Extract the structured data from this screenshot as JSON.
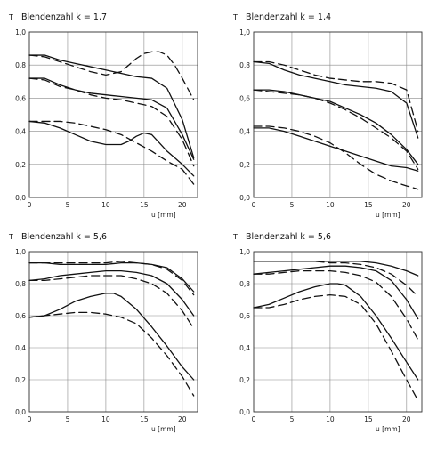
{
  "chart_data": [
    {
      "type": "line",
      "title": "Blendenzahl k = 1,7",
      "ylabel": "T",
      "xlabel": "u [mm]",
      "xlim": [
        0,
        22
      ],
      "ylim": [
        0,
        1.0
      ],
      "xticks": [
        0,
        5,
        10,
        15,
        20
      ],
      "yticks": [
        "0,0",
        "0,2",
        "0,4",
        "0,6",
        "0,8",
        "1,0"
      ],
      "series": [
        {
          "style": "solid",
          "x": [
            0,
            2,
            4,
            6,
            8,
            10,
            12,
            14,
            16,
            18,
            20,
            21.5
          ],
          "y": [
            0.86,
            0.86,
            0.83,
            0.81,
            0.79,
            0.77,
            0.75,
            0.73,
            0.72,
            0.66,
            0.47,
            0.24
          ]
        },
        {
          "style": "dashed",
          "x": [
            0,
            2,
            4,
            6,
            8,
            10,
            12,
            13,
            14,
            15,
            16,
            17,
            18,
            19,
            20,
            21.5
          ],
          "y": [
            0.86,
            0.85,
            0.82,
            0.79,
            0.76,
            0.74,
            0.76,
            0.8,
            0.84,
            0.87,
            0.88,
            0.88,
            0.86,
            0.8,
            0.72,
            0.59
          ]
        },
        {
          "style": "solid",
          "x": [
            0,
            2,
            4,
            6,
            8,
            10,
            12,
            14,
            16,
            18,
            20,
            21.5
          ],
          "y": [
            0.72,
            0.72,
            0.68,
            0.65,
            0.63,
            0.62,
            0.61,
            0.6,
            0.59,
            0.54,
            0.38,
            0.23
          ]
        },
        {
          "style": "dashed",
          "x": [
            0,
            2,
            4,
            6,
            8,
            10,
            12,
            14,
            16,
            18,
            20,
            21.5
          ],
          "y": [
            0.72,
            0.71,
            0.67,
            0.65,
            0.62,
            0.6,
            0.59,
            0.57,
            0.55,
            0.49,
            0.35,
            0.19
          ]
        },
        {
          "style": "solid",
          "x": [
            0,
            2,
            4,
            6,
            8,
            10,
            12,
            13,
            14,
            15,
            16,
            17,
            18,
            20,
            21.5
          ],
          "y": [
            0.46,
            0.45,
            0.42,
            0.38,
            0.34,
            0.32,
            0.32,
            0.34,
            0.37,
            0.39,
            0.38,
            0.33,
            0.28,
            0.2,
            0.13
          ]
        },
        {
          "style": "dashed",
          "x": [
            0,
            2,
            4,
            6,
            8,
            10,
            12,
            14,
            16,
            18,
            20,
            21.5
          ],
          "y": [
            0.46,
            0.46,
            0.46,
            0.45,
            0.43,
            0.41,
            0.38,
            0.33,
            0.28,
            0.22,
            0.17,
            0.08
          ]
        }
      ]
    },
    {
      "type": "line",
      "title": "Blendenzahl k = 1,4",
      "ylabel": "T",
      "xlabel": "u [mm]",
      "xlim": [
        0,
        22
      ],
      "ylim": [
        0,
        1.0
      ],
      "xticks": [
        0,
        5,
        10,
        15,
        20
      ],
      "yticks": [
        "0,0",
        "0,2",
        "0,4",
        "0,6",
        "0,8",
        "1,0"
      ],
      "series": [
        {
          "style": "solid",
          "x": [
            0,
            2,
            4,
            6,
            8,
            10,
            12,
            14,
            16,
            18,
            20,
            21.5
          ],
          "y": [
            0.82,
            0.81,
            0.77,
            0.74,
            0.72,
            0.7,
            0.68,
            0.67,
            0.66,
            0.64,
            0.57,
            0.36
          ]
        },
        {
          "style": "dashed",
          "x": [
            0,
            2,
            4,
            6,
            8,
            10,
            12,
            14,
            16,
            18,
            20,
            21.5
          ],
          "y": [
            0.82,
            0.82,
            0.8,
            0.77,
            0.74,
            0.72,
            0.71,
            0.7,
            0.7,
            0.69,
            0.65,
            0.4
          ]
        },
        {
          "style": "solid",
          "x": [
            0,
            2,
            4,
            6,
            8,
            10,
            12,
            14,
            16,
            18,
            20,
            21.5
          ],
          "y": [
            0.65,
            0.65,
            0.64,
            0.62,
            0.6,
            0.58,
            0.54,
            0.5,
            0.45,
            0.38,
            0.29,
            0.2
          ]
        },
        {
          "style": "dashed",
          "x": [
            0,
            2,
            4,
            6,
            8,
            10,
            12,
            14,
            16,
            18,
            20,
            21.5
          ],
          "y": [
            0.65,
            0.64,
            0.63,
            0.62,
            0.6,
            0.57,
            0.53,
            0.48,
            0.42,
            0.36,
            0.28,
            0.17
          ]
        },
        {
          "style": "solid",
          "x": [
            0,
            2,
            4,
            6,
            8,
            10,
            12,
            14,
            16,
            18,
            20,
            21.5
          ],
          "y": [
            0.42,
            0.42,
            0.4,
            0.37,
            0.34,
            0.31,
            0.28,
            0.25,
            0.22,
            0.19,
            0.18,
            0.16
          ]
        },
        {
          "style": "dashed",
          "x": [
            0,
            2,
            4,
            6,
            8,
            10,
            12,
            14,
            16,
            18,
            20,
            21.5
          ],
          "y": [
            0.43,
            0.43,
            0.42,
            0.4,
            0.37,
            0.33,
            0.27,
            0.2,
            0.14,
            0.1,
            0.07,
            0.05
          ]
        }
      ]
    },
    {
      "type": "line",
      "title": "Blendenzahl k = 5,6",
      "ylabel": "T",
      "xlabel": "u [mm]",
      "xlim": [
        0,
        22
      ],
      "ylim": [
        0,
        1.0
      ],
      "xticks": [
        0,
        5,
        10,
        15,
        20
      ],
      "yticks": [
        "0,0",
        "0,2",
        "0,4",
        "0,6",
        "0,8",
        "1,0"
      ],
      "series": [
        {
          "style": "solid",
          "x": [
            0,
            2,
            4,
            6,
            8,
            10,
            12,
            14,
            16,
            18,
            20,
            21.5
          ],
          "y": [
            0.93,
            0.93,
            0.92,
            0.92,
            0.92,
            0.92,
            0.93,
            0.93,
            0.92,
            0.9,
            0.83,
            0.75
          ]
        },
        {
          "style": "dashed",
          "x": [
            0,
            2,
            4,
            6,
            8,
            10,
            12,
            14,
            16,
            18,
            20,
            21.5
          ],
          "y": [
            0.93,
            0.93,
            0.93,
            0.93,
            0.93,
            0.93,
            0.94,
            0.93,
            0.92,
            0.89,
            0.82,
            0.73
          ]
        },
        {
          "style": "solid",
          "x": [
            0,
            2,
            4,
            6,
            8,
            10,
            12,
            14,
            16,
            18,
            20,
            21.5
          ],
          "y": [
            0.82,
            0.83,
            0.85,
            0.86,
            0.87,
            0.88,
            0.88,
            0.87,
            0.85,
            0.8,
            0.7,
            0.6
          ]
        },
        {
          "style": "dashed",
          "x": [
            0,
            2,
            4,
            6,
            8,
            10,
            12,
            14,
            16,
            18,
            20,
            21.5
          ],
          "y": [
            0.82,
            0.82,
            0.83,
            0.84,
            0.85,
            0.85,
            0.85,
            0.83,
            0.8,
            0.74,
            0.63,
            0.52
          ]
        },
        {
          "style": "solid",
          "x": [
            0,
            2,
            4,
            6,
            8,
            10,
            11,
            12,
            14,
            16,
            18,
            20,
            21.5
          ],
          "y": [
            0.59,
            0.6,
            0.64,
            0.69,
            0.72,
            0.74,
            0.74,
            0.72,
            0.64,
            0.53,
            0.41,
            0.28,
            0.2
          ]
        },
        {
          "style": "dashed",
          "x": [
            0,
            2,
            4,
            6,
            8,
            10,
            12,
            14,
            16,
            18,
            20,
            21.5
          ],
          "y": [
            0.59,
            0.6,
            0.61,
            0.62,
            0.62,
            0.61,
            0.59,
            0.55,
            0.46,
            0.35,
            0.22,
            0.1
          ]
        }
      ]
    },
    {
      "type": "line",
      "title": "Blendenzahl k = 5,6",
      "ylabel": "T",
      "xlabel": "u [mm]",
      "xlim": [
        0,
        22
      ],
      "ylim": [
        0,
        1.0
      ],
      "xticks": [
        0,
        5,
        10,
        15,
        20
      ],
      "yticks": [
        "0,0",
        "0,2",
        "0,4",
        "0,6",
        "0,8",
        "1,0"
      ],
      "series": [
        {
          "style": "solid",
          "x": [
            0,
            2,
            4,
            6,
            8,
            10,
            12,
            14,
            16,
            18,
            20,
            21.5
          ],
          "y": [
            0.94,
            0.94,
            0.94,
            0.94,
            0.94,
            0.94,
            0.94,
            0.94,
            0.93,
            0.91,
            0.88,
            0.85
          ]
        },
        {
          "style": "dashed",
          "x": [
            0,
            2,
            4,
            6,
            8,
            10,
            12,
            14,
            16,
            18,
            20,
            21.5
          ],
          "y": [
            0.94,
            0.94,
            0.94,
            0.94,
            0.94,
            0.93,
            0.93,
            0.92,
            0.9,
            0.86,
            0.79,
            0.72
          ]
        },
        {
          "style": "solid",
          "x": [
            0,
            2,
            4,
            6,
            8,
            10,
            12,
            14,
            16,
            18,
            20,
            21.5
          ],
          "y": [
            0.86,
            0.87,
            0.88,
            0.89,
            0.9,
            0.91,
            0.91,
            0.9,
            0.88,
            0.82,
            0.7,
            0.58
          ]
        },
        {
          "style": "dashed",
          "x": [
            0,
            2,
            4,
            6,
            8,
            10,
            12,
            14,
            16,
            18,
            20,
            21.5
          ],
          "y": [
            0.86,
            0.86,
            0.87,
            0.88,
            0.88,
            0.88,
            0.87,
            0.85,
            0.81,
            0.72,
            0.58,
            0.45
          ]
        },
        {
          "style": "solid",
          "x": [
            0,
            2,
            4,
            6,
            8,
            10,
            11,
            12,
            14,
            16,
            18,
            20,
            21.5
          ],
          "y": [
            0.65,
            0.67,
            0.71,
            0.75,
            0.78,
            0.8,
            0.8,
            0.79,
            0.72,
            0.6,
            0.46,
            0.31,
            0.2
          ]
        },
        {
          "style": "dashed",
          "x": [
            0,
            2,
            4,
            6,
            8,
            10,
            12,
            14,
            16,
            18,
            20,
            21.5
          ],
          "y": [
            0.65,
            0.65,
            0.67,
            0.7,
            0.72,
            0.73,
            0.72,
            0.67,
            0.55,
            0.38,
            0.2,
            0.07
          ]
        }
      ]
    }
  ]
}
